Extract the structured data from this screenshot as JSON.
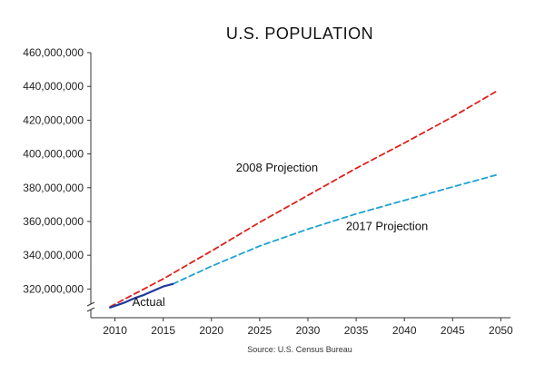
{
  "chart_data": {
    "type": "line",
    "title": "U.S. POPULATION",
    "source": "Source: U.S. Census Bureau",
    "xlabel": "",
    "ylabel": "",
    "xlim": [
      2007.5,
      2051
    ],
    "ylim": [
      303000000,
      460000000
    ],
    "x_ticks": [
      2010,
      2015,
      2020,
      2025,
      2030,
      2035,
      2040,
      2045,
      2050
    ],
    "x_tick_labels": [
      "2010",
      "2015",
      "2020",
      "2025",
      "2030",
      "2035",
      "2040",
      "2045",
      "2050"
    ],
    "y_ticks": [
      320000000,
      340000000,
      360000000,
      380000000,
      400000000,
      420000000,
      440000000,
      460000000
    ],
    "y_tick_labels": [
      "320,000,000",
      "340,000,000",
      "360,000,000",
      "380,000,000",
      "400,000,000",
      "420,000,000",
      "440,000,000",
      "460,000,000"
    ],
    "axis_break": true,
    "grid": false,
    "legend": "none",
    "series": [
      {
        "name": "2008 Projection",
        "color": "#e0201b",
        "style": "dashed",
        "x": [
          2009.5,
          2015,
          2020,
          2025,
          2030,
          2035,
          2040,
          2045,
          2049.5
        ],
        "y": [
          309500000,
          326000000,
          342500000,
          359500000,
          375500000,
          391500000,
          406500000,
          422000000,
          437000000
        ]
      },
      {
        "name": "2017 Projection",
        "color": "#1ea1d4",
        "style": "dashed",
        "x": [
          2016,
          2020,
          2025,
          2030,
          2035,
          2040,
          2045,
          2049.5
        ],
        "y": [
          323000000,
          333500000,
          345500000,
          355500000,
          364500000,
          372500000,
          380500000,
          387500000
        ]
      },
      {
        "name": "Actual",
        "color": "#1f3a9c",
        "style": "solid",
        "x": [
          2009.5,
          2011,
          2012,
          2013,
          2014,
          2015,
          2016
        ],
        "y": [
          309000000,
          312000000,
          314500000,
          316500000,
          319000000,
          321500000,
          323000000
        ]
      }
    ],
    "annotations": [
      {
        "text": "2008 Projection",
        "x": 2026.8,
        "y": 389500000
      },
      {
        "text": "2017 Projection",
        "x": 2038.2,
        "y": 355000000
      },
      {
        "text": "Actual",
        "x": 2013.5,
        "y": 310000000
      }
    ]
  }
}
